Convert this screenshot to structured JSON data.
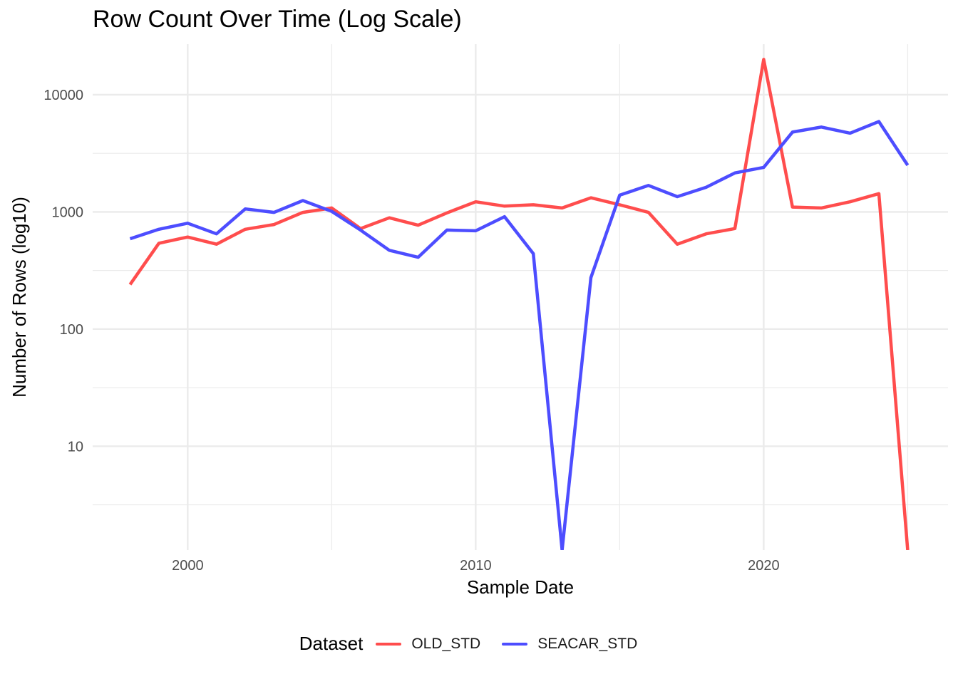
{
  "chart_data": {
    "type": "line",
    "title": "Row Count Over Time (Log Scale)",
    "xlabel": "Sample Date",
    "ylabel": "Number of Rows (log10)",
    "x_scale": "linear",
    "y_scale": "log10",
    "xlim": [
      1996.7,
      2026.4
    ],
    "ylim": [
      1.3,
      27000
    ],
    "x_ticks": [
      2000,
      2010,
      2020
    ],
    "x_tick_labels": [
      "2000",
      "2010",
      "2020"
    ],
    "y_ticks": [
      10,
      100,
      1000,
      10000
    ],
    "y_tick_labels": [
      "10",
      "100",
      "1000",
      "10000"
    ],
    "grid": true,
    "legend_title": "Dataset",
    "legend_position": "bottom",
    "series": [
      {
        "name": "OLD_STD",
        "color": "#ff4d4d",
        "x": [
          1998,
          1999,
          2000,
          2001,
          2002,
          2003,
          2004,
          2005,
          2006,
          2007,
          2008,
          2009,
          2010,
          2011,
          2012,
          2013,
          2014,
          2015,
          2016,
          2017,
          2018,
          2019,
          2020,
          2021,
          2022,
          2023,
          2024,
          2025
        ],
        "y": [
          240,
          540,
          610,
          530,
          710,
          780,
          990,
          1080,
          720,
          890,
          770,
          980,
          1220,
          1120,
          1150,
          1080,
          1320,
          1150,
          990,
          530,
          650,
          720,
          20000,
          1100,
          1080,
          1220,
          1430,
          1
        ]
      },
      {
        "name": "SEACAR_STD",
        "color": "#4d4dff",
        "x": [
          1998,
          1999,
          2000,
          2001,
          2002,
          2003,
          2004,
          2005,
          2006,
          2007,
          2008,
          2009,
          2010,
          2011,
          2012,
          2013,
          2014,
          2015,
          2016,
          2017,
          2018,
          2019,
          2020,
          2021,
          2022,
          2023,
          2024,
          2025
        ],
        "y": [
          590,
          710,
          800,
          650,
          1060,
          990,
          1250,
          1010,
          700,
          470,
          410,
          700,
          690,
          910,
          440,
          1,
          275,
          1390,
          1680,
          1350,
          1620,
          2150,
          2400,
          4800,
          5300,
          4700,
          5900,
          2500
        ]
      }
    ]
  }
}
